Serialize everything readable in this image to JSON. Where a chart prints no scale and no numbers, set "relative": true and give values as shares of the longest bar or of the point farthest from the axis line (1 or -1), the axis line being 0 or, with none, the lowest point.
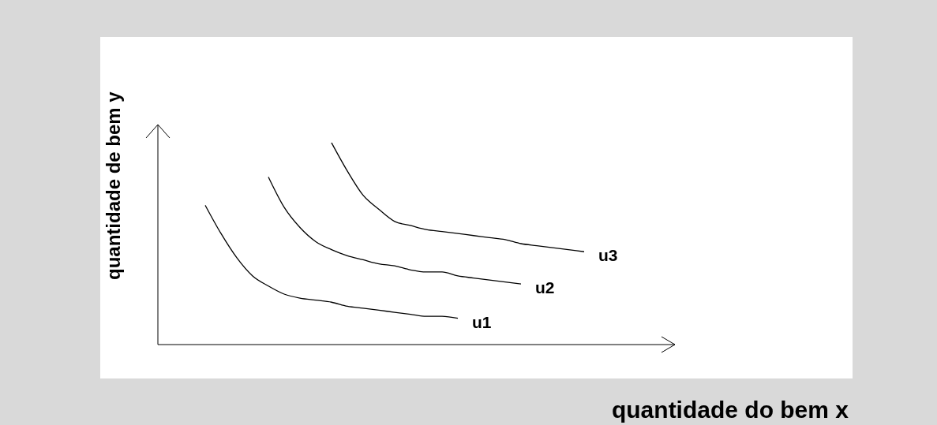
{
  "chart_data": {
    "type": "line",
    "relative": true,
    "xlabel": "quantidade do bem x",
    "ylabel": "quantidade de bem y",
    "categories": [
      null,
      null,
      null,
      null,
      null,
      null,
      null,
      null,
      null,
      null,
      null,
      null,
      null,
      null,
      null,
      null,
      null,
      null,
      null,
      null,
      null,
      null,
      null,
      null,
      null,
      null,
      null,
      null,
      null,
      null,
      null,
      null
    ],
    "series": [
      {
        "name": "u1",
        "color": "#000000",
        "values": [
          null,
          null,
          0.69,
          0.55,
          0.43,
          0.34,
          0.29,
          0.25,
          0.23,
          0.22,
          0.21,
          0.19,
          0.18,
          0.17,
          0.16,
          0.15,
          0.14,
          0.14,
          0.13,
          null,
          null,
          null,
          null,
          null,
          null,
          null,
          null,
          null,
          null,
          null,
          null,
          null
        ]
      },
      {
        "name": "u2",
        "color": "#000000",
        "values": [
          null,
          null,
          null,
          null,
          null,
          null,
          0.83,
          0.68,
          0.58,
          0.51,
          0.47,
          0.44,
          0.42,
          0.4,
          0.39,
          0.37,
          0.36,
          0.36,
          0.34,
          0.33,
          0.32,
          0.31,
          0.3,
          null,
          null,
          null,
          null,
          null,
          null,
          null,
          null,
          null
        ]
      },
      {
        "name": "u3",
        "color": "#000000",
        "values": [
          null,
          null,
          null,
          null,
          null,
          null,
          null,
          null,
          null,
          null,
          1,
          0.86,
          0.74,
          0.67,
          0.61,
          0.59,
          0.57,
          0.56,
          0.55,
          0.54,
          0.53,
          0.52,
          0.5,
          0.49,
          0.48,
          0.47,
          0.46,
          null,
          null,
          null,
          null,
          null
        ]
      }
    ]
  }
}
